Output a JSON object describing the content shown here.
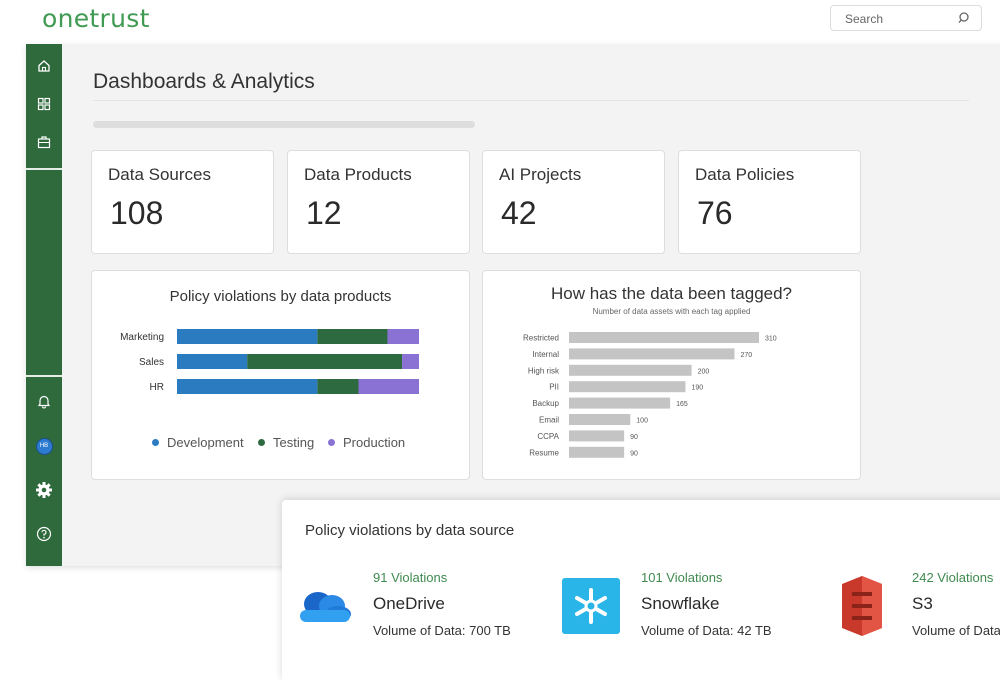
{
  "header": {
    "logo_text": "onetrust",
    "search_placeholder": "Search"
  },
  "sidebar": {
    "items": [
      {
        "icon": "home-icon"
      },
      {
        "icon": "grid-icon"
      },
      {
        "icon": "briefcase-icon"
      },
      {
        "icon": "bell-icon"
      },
      {
        "icon": "avatar",
        "label": "HB"
      },
      {
        "icon": "gear-icon"
      },
      {
        "icon": "help-icon"
      }
    ]
  },
  "page": {
    "title": "Dashboards & Analytics"
  },
  "stats": [
    {
      "label": "Data Sources",
      "value": "108"
    },
    {
      "label": "Data Products",
      "value": "12"
    },
    {
      "label": "AI Projects",
      "value": "42"
    },
    {
      "label": "Data Policies",
      "value": "76"
    }
  ],
  "colors": {
    "brand_green": "#3f9a52",
    "sidebar_green": "#2f6a3c",
    "development": "#2b7bc0",
    "testing": "#2d6a40",
    "production": "#8a72d4",
    "tag_bar": "#c4c4c4"
  },
  "chart_data": [
    {
      "type": "bar",
      "orientation": "horizontal",
      "stacked": true,
      "title": "Policy violations by data products",
      "categories": [
        "Marketing",
        "Sales",
        "HR"
      ],
      "series": [
        {
          "name": "Development",
          "values": [
            58,
            29,
            58
          ]
        },
        {
          "name": "Testing",
          "values": [
            29,
            64,
            17
          ]
        },
        {
          "name": "Production",
          "values": [
            13,
            7,
            25
          ]
        }
      ],
      "legend_position": "bottom"
    },
    {
      "type": "bar",
      "orientation": "horizontal",
      "title": "How has the data been tagged?",
      "subtitle": "Number of data assets with each tag applied",
      "categories": [
        "Restricted",
        "Internal",
        "High risk",
        "PII",
        "Backup",
        "Email",
        "CCPA",
        "Resume"
      ],
      "values": [
        310,
        270,
        200,
        190,
        165,
        100,
        90,
        90
      ],
      "xlim": [
        0,
        310
      ]
    }
  ],
  "bottom_panel": {
    "title": "Policy violations by data source",
    "sources": [
      {
        "violations": "91 Violations",
        "name": "OneDrive",
        "volume": "Volume of Data: 700 TB",
        "icon": "onedrive-cloud-icon"
      },
      {
        "violations": "101 Violations",
        "name": "Snowflake",
        "volume": "Volume of Data: 42 TB",
        "icon": "snowflake-icon"
      },
      {
        "violations": "242 Violations",
        "name": "S3",
        "volume": "Volume of Data",
        "icon": "s3-bucket-icon"
      }
    ]
  }
}
